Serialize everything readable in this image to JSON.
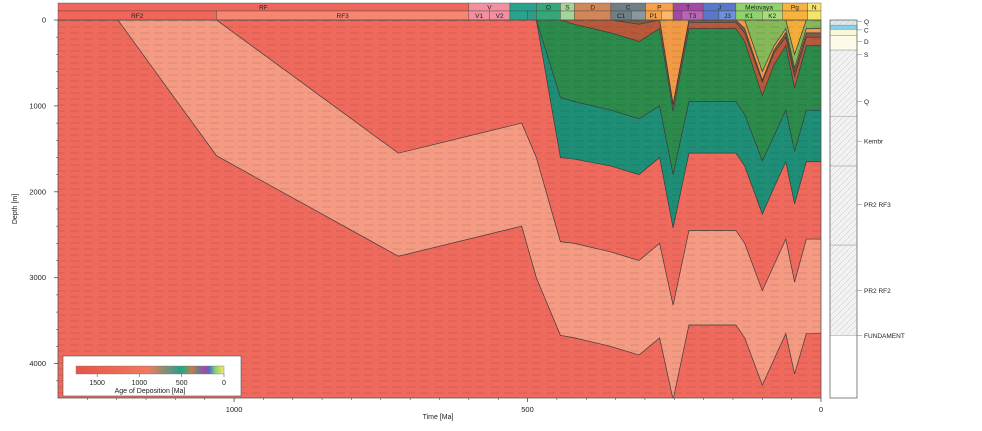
{
  "chart_data": {
    "type": "area",
    "title": "",
    "xlabel": "Time [Ma]",
    "ylabel": "Depth [m]",
    "xlim": [
      1300,
      0
    ],
    "ylim": [
      0,
      4400
    ],
    "x_ticks": [
      "1000",
      "500",
      "0"
    ],
    "x_tick_values": [
      1000,
      500,
      0
    ],
    "y_ticks": [
      "0",
      "1000",
      "2000",
      "3000",
      "4000"
    ],
    "y_tick_values": [
      0,
      1000,
      2000,
      3000,
      4000
    ],
    "periods_top": [
      {
        "label": "RF",
        "from": 1300,
        "to": 600,
        "color": "#f0665a"
      },
      {
        "label": "V",
        "from": 600,
        "to": 530,
        "color": "#f48fa0"
      },
      {
        "label": "",
        "from": 530,
        "to": 485,
        "color": "#27a38e"
      },
      {
        "label": "O",
        "from": 485,
        "to": 444,
        "color": "#34a87a"
      },
      {
        "label": "S",
        "from": 444,
        "to": 420,
        "color": "#a6d59a"
      },
      {
        "label": "D",
        "from": 420,
        "to": 358,
        "color": "#d2875a"
      },
      {
        "label": "C",
        "from": 358,
        "to": 299,
        "color": "#6f7f86"
      },
      {
        "label": "P",
        "from": 299,
        "to": 252,
        "color": "#f7a14a"
      },
      {
        "label": "T",
        "from": 252,
        "to": 201,
        "color": "#a349a4"
      },
      {
        "label": "J",
        "from": 201,
        "to": 145,
        "color": "#5a78c8"
      },
      {
        "label": "Melovaya",
        "from": 145,
        "to": 66,
        "color": "#8fd36e"
      },
      {
        "label": "Pg",
        "from": 66,
        "to": 23,
        "color": "#f7b33e"
      },
      {
        "label": "N",
        "from": 23,
        "to": 0,
        "color": "#f6e36a"
      }
    ],
    "periods_bottom": [
      {
        "label": "RF2",
        "from": 1300,
        "to": 1030,
        "color": "#f0665a"
      },
      {
        "label": "RF3",
        "from": 1030,
        "to": 600,
        "color": "#f58770"
      },
      {
        "label": "V1",
        "from": 600,
        "to": 565,
        "color": "#f48fa0"
      },
      {
        "label": "V2",
        "from": 565,
        "to": 530,
        "color": "#f48fa0"
      },
      {
        "label": "",
        "from": 530,
        "to": 500,
        "color": "#27a38e"
      },
      {
        "label": "",
        "from": 500,
        "to": 485,
        "color": "#2e9c86"
      },
      {
        "label": "",
        "from": 485,
        "to": 444,
        "color": "#34a87a"
      },
      {
        "label": "",
        "from": 444,
        "to": 420,
        "color": "#a6d59a"
      },
      {
        "label": "",
        "from": 420,
        "to": 358,
        "color": "#d2875a"
      },
      {
        "label": "C1",
        "from": 358,
        "to": 323,
        "color": "#6f7f86"
      },
      {
        "label": "",
        "from": 323,
        "to": 299,
        "color": "#8a979c"
      },
      {
        "label": "P1",
        "from": 299,
        "to": 272,
        "color": "#f7a14a"
      },
      {
        "label": "",
        "from": 272,
        "to": 252,
        "color": "#f9b86c"
      },
      {
        "label": "",
        "from": 252,
        "to": 237,
        "color": "#a349a4"
      },
      {
        "label": "T3",
        "from": 237,
        "to": 201,
        "color": "#b866b4"
      },
      {
        "label": "",
        "from": 201,
        "to": 174,
        "color": "#5a78c8"
      },
      {
        "label": "J3",
        "from": 174,
        "to": 145,
        "color": "#6f8fd8"
      },
      {
        "label": "K1",
        "from": 145,
        "to": 100,
        "color": "#8fd36e"
      },
      {
        "label": "K2",
        "from": 100,
        "to": 66,
        "color": "#a8dc7e"
      },
      {
        "label": "",
        "from": 66,
        "to": 23,
        "color": "#f7b33e"
      },
      {
        "label": "",
        "from": 23,
        "to": 0,
        "color": "#f6e36a"
      }
    ],
    "horizon_times": [
      1300,
      1198,
      1030,
      720,
      510,
      485,
      444,
      420,
      358,
      310,
      275,
      252,
      225,
      201,
      180,
      145,
      130,
      100,
      80,
      60,
      45,
      25,
      10,
      0
    ],
    "layers": [
      {
        "name": "FUNDAMENT",
        "age_ma": 1650,
        "color": "#ef6a5d",
        "top": [
          0,
          0,
          1580,
          2750,
          2400,
          3000,
          3670,
          3700,
          3800,
          3900,
          3700,
          4420,
          3550,
          3550,
          3550,
          3550,
          3700,
          4250,
          3950,
          3650,
          4120,
          3650,
          3650,
          3650
        ],
        "base": [
          4400,
          4400,
          4400,
          4400,
          4400,
          4400,
          4400,
          4400,
          4400,
          4400,
          4400,
          4400,
          4400,
          4400,
          4400,
          4400,
          4400,
          4400,
          4400,
          4400,
          4400,
          4400,
          4400,
          4400
        ]
      },
      {
        "name": "PR2 RF2",
        "age_ma": 1250,
        "color": "#f59a83",
        "top": [
          0,
          0,
          0,
          1550,
          1200,
          1600,
          2580,
          2600,
          2700,
          2800,
          2600,
          3320,
          2450,
          2450,
          2450,
          2450,
          2600,
          3150,
          2850,
          2550,
          3050,
          2550,
          2550,
          2550
        ]
      },
      {
        "name": "PR2 RF3",
        "age_ma": 850,
        "color": "#ef6a5d",
        "top": [
          0,
          0,
          0,
          0,
          0,
          0,
          1600,
          1620,
          1700,
          1800,
          1600,
          2420,
          1550,
          1550,
          1550,
          1550,
          1700,
          2260,
          1950,
          1650,
          2140,
          1650,
          1650,
          1650
        ]
      },
      {
        "name": "Kembr",
        "age_ma": 520,
        "color": "#1e8f76",
        "top": [
          0,
          0,
          0,
          0,
          0,
          0,
          900,
          950,
          1050,
          1150,
          1000,
          1800,
          950,
          950,
          950,
          950,
          1100,
          1640,
          1350,
          1050,
          1530,
          1050,
          1050,
          1050
        ]
      },
      {
        "name": "Q",
        "age_ma": 465,
        "color": "#2c8a4a",
        "top": [
          0,
          0,
          0,
          0,
          0,
          0,
          0,
          50,
          150,
          250,
          100,
          1060,
          100,
          100,
          100,
          100,
          250,
          880,
          520,
          300,
          790,
          300,
          300,
          300
        ]
      },
      {
        "name": "D",
        "age_ma": 390,
        "color": "#b85a3a",
        "top": [
          0,
          0,
          0,
          0,
          0,
          0,
          0,
          0,
          0,
          50,
          0,
          990,
          30,
          30,
          30,
          30,
          150,
          720,
          380,
          200,
          660,
          200,
          200,
          200
        ]
      },
      {
        "name": "C",
        "age_ma": 330,
        "color": "#7f5b4e",
        "top": [
          0,
          0,
          0,
          0,
          0,
          0,
          0,
          0,
          0,
          0,
          0,
          980,
          0,
          0,
          0,
          0,
          100,
          700,
          350,
          150,
          600,
          150,
          150,
          150
        ]
      },
      {
        "name": "P",
        "age_ma": 275,
        "color": "#f29a45",
        "top": [
          0,
          0,
          0,
          0,
          0,
          0,
          0,
          0,
          0,
          0,
          0,
          0,
          0,
          0,
          0,
          0,
          0,
          600,
          300,
          100,
          560,
          100,
          100,
          100
        ]
      },
      {
        "name": "Melovaya",
        "age_ma": 110,
        "color": "#86b858",
        "top": [
          0,
          0,
          0,
          0,
          0,
          0,
          0,
          0,
          0,
          0,
          0,
          0,
          0,
          0,
          0,
          0,
          0,
          0,
          0,
          0,
          400,
          0,
          0,
          0
        ]
      },
      {
        "name": "Pg",
        "age_ma": 45,
        "color": "#f3ad38",
        "top": [
          0,
          0,
          0,
          0,
          0,
          0,
          0,
          0,
          0,
          0,
          0,
          0,
          0,
          0,
          0,
          0,
          0,
          0,
          0,
          0,
          0,
          0,
          0,
          0
        ]
      }
    ],
    "column_units": [
      {
        "label": "Q",
        "top": 0,
        "bottom": 60,
        "color": "#dce8ec",
        "hatch": true
      },
      {
        "label": "C",
        "top": 60,
        "bottom": 110,
        "color": "#86d0e8",
        "hatch": true
      },
      {
        "label": "D",
        "top": 110,
        "bottom": 180,
        "color": "#f8f7d8",
        "hatch": false
      },
      {
        "label": "S",
        "top": 180,
        "bottom": 350,
        "color": "#fbfbe8",
        "hatch": false
      },
      {
        "label": "Q",
        "top": 350,
        "bottom": 1120,
        "color": "#f2f2f2",
        "hatch": true
      },
      {
        "label": "Kembr",
        "top": 1120,
        "bottom": 1700,
        "color": "#f2f2f2",
        "hatch": true
      },
      {
        "label": "PR2 RF3",
        "top": 1700,
        "bottom": 2620,
        "color": "#f2f2f2",
        "hatch": true
      },
      {
        "label": "PR2 RF2",
        "top": 2620,
        "bottom": 3670,
        "color": "#f2f2f2",
        "hatch": true
      },
      {
        "label": "FUNDAMENT",
        "top": 3670,
        "bottom": 4400,
        "color": "#ffffff",
        "hatch": false
      }
    ],
    "column_label_depths": [
      20,
      115,
      250,
      400,
      950,
      1410,
      2150,
      3150,
      3670
    ],
    "legend": {
      "title": "Age of Deposition [Ma]",
      "tick_labels": [
        "1500",
        "1000",
        "500",
        "0"
      ],
      "tick_values": [
        1500,
        1000,
        500,
        0
      ],
      "range": [
        1750,
        0
      ],
      "stops": [
        {
          "age": 1750,
          "color": "#e8534a"
        },
        {
          "age": 900,
          "color": "#f07a5c"
        },
        {
          "age": 520,
          "color": "#2aa08a"
        },
        {
          "age": 470,
          "color": "#3aa872"
        },
        {
          "age": 380,
          "color": "#c9784c"
        },
        {
          "age": 300,
          "color": "#6d7c88"
        },
        {
          "age": 230,
          "color": "#a349a4"
        },
        {
          "age": 170,
          "color": "#4f72c8"
        },
        {
          "age": 100,
          "color": "#8fd36e"
        },
        {
          "age": 0,
          "color": "#f6e36a"
        }
      ]
    }
  }
}
